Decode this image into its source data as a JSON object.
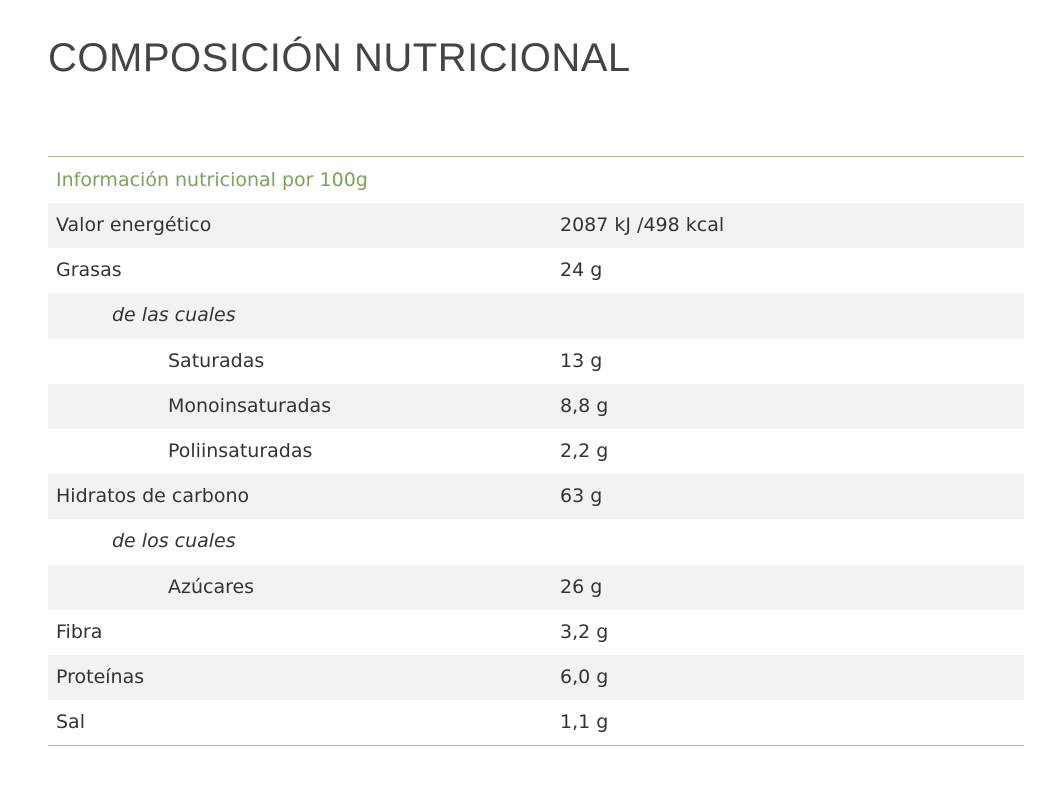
{
  "header": {
    "title": "COMPOSICIÓN NUTRICIONAL"
  },
  "table": {
    "caption": "Información nutricional por 100g",
    "rows": [
      [
        "Valor energético",
        "2087 kJ /498 kcal"
      ],
      [
        "Grasas",
        "24 g"
      ],
      [
        "de las cuales"
      ],
      [
        "Saturadas",
        "13 g"
      ],
      [
        "Monoinsaturadas",
        "8,8 g"
      ],
      [
        "Poliinsaturadas",
        "2,2 g"
      ],
      [
        "Hidratos de carbono",
        "63 g"
      ],
      [
        "de los cuales"
      ],
      [
        "Azúcares",
        "26 g"
      ],
      [
        "Fibra",
        "3,2 g"
      ],
      [
        "Proteínas",
        "6,0 g"
      ],
      [
        "Sal",
        "1,1 g"
      ]
    ]
  }
}
